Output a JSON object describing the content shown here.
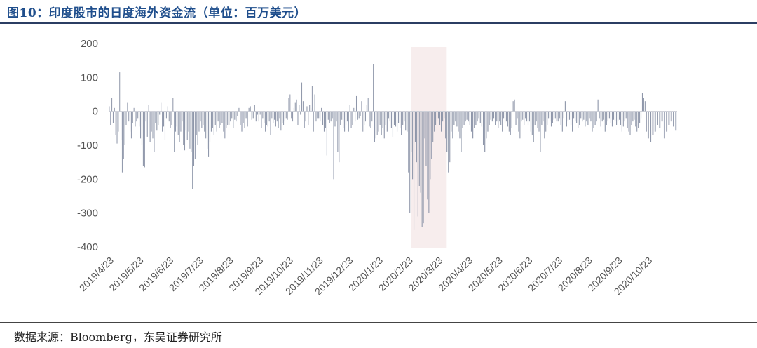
{
  "title": "图10：印度股市的日度海外资金流（单位：百万美元）",
  "source": "数据来源：Bloomberg，东吴证券研究所",
  "colors": {
    "bar": "#8f97aa",
    "highlight": "#f7eded",
    "title": "#1f4e8c"
  },
  "chart_data": {
    "type": "bar",
    "title": "印度股市的日度海外资金流",
    "xlabel": "",
    "ylabel": "",
    "ylim": [
      -400,
      200
    ],
    "yticks": [
      200,
      100,
      0,
      -100,
      -200,
      -300,
      -400
    ],
    "xticks": [
      "2019/4/23",
      "2019/5/23",
      "2019/6/23",
      "2019/7/23",
      "2019/8/23",
      "2019/9/23",
      "2019/10/23",
      "2019/11/23",
      "2019/12/23",
      "2020/1/23",
      "2020/2/23",
      "2020/3/23",
      "2020/4/23",
      "2020/5/23",
      "2020/6/23",
      "2020/7/23",
      "2020/8/23",
      "2020/9/23",
      "2020/10/23"
    ],
    "highlight_range": [
      "2020/2/25",
      "2020/4/1"
    ],
    "monthly_values": [
      [
        15,
        -40,
        40,
        -35,
        10,
        -70,
        -95,
        -60,
        115,
        -85,
        -180,
        -140,
        -100,
        -40,
        25,
        -30,
        -60,
        -80,
        -35,
        10,
        -45,
        -30,
        -20
      ],
      [
        -45,
        -80,
        -100,
        -160,
        -165,
        -30,
        -75,
        20,
        -90,
        -60,
        -80,
        -120,
        -35,
        -55,
        -40,
        -10,
        25,
        -60,
        -45,
        -85,
        -20,
        15
      ],
      [
        -30,
        -50,
        -40,
        40,
        -120,
        -60,
        -45,
        -70,
        -90,
        -60,
        -30,
        -100,
        -115,
        -55,
        -85,
        -60,
        -110,
        -120,
        -230,
        -160,
        -140,
        -70,
        -100
      ],
      [
        -60,
        -30,
        -50,
        -40,
        -60,
        -80,
        -110,
        -135,
        -90,
        -60,
        -50,
        -70,
        -40,
        -60,
        -30,
        -50,
        -40,
        -35,
        -60,
        -80,
        -50,
        -40
      ],
      [
        -40,
        -30,
        -20,
        -50,
        -25,
        -30,
        -15,
        10,
        -40,
        -60,
        -35,
        -50,
        -20,
        -45,
        10,
        15,
        -25,
        -20,
        20,
        -30,
        -10
      ],
      [
        -30,
        -10,
        -50,
        -20,
        -35,
        -60,
        -40,
        -45,
        -30,
        -70,
        -20,
        -35,
        -25,
        -45,
        -30,
        -50,
        -20,
        -55,
        -35,
        -40,
        -30,
        -20,
        -25
      ],
      [
        40,
        50,
        -20,
        -30,
        10,
        25,
        35,
        -40,
        20,
        -10,
        85,
        30,
        -50,
        -30,
        15,
        -40,
        20,
        10,
        75,
        -60,
        50,
        -30,
        -20
      ],
      [
        -20,
        -30,
        10,
        -40,
        -60,
        -50,
        -130,
        -25,
        -35,
        -30,
        -20,
        -200,
        -45,
        -30,
        -120,
        -150,
        -40,
        -25,
        -50,
        -60,
        -40,
        -30
      ],
      [
        -60,
        20,
        -50,
        -40,
        10,
        -30,
        45,
        -25,
        -20,
        -15,
        30,
        -60,
        -40,
        -30,
        20,
        40,
        -45,
        -50,
        -30,
        140,
        -90,
        -80,
        -70
      ],
      [
        -60,
        -40,
        -70,
        -50,
        -80,
        -40,
        -60,
        -20,
        -30,
        -50,
        -75,
        -40,
        -45,
        -60,
        -35,
        -50,
        -70,
        -40,
        -30,
        -55,
        -60
      ],
      [
        -180,
        -300,
        -120,
        -200,
        -350,
        -90,
        -150,
        -310,
        -220,
        -240,
        -340,
        -330,
        -80,
        -160,
        -260,
        -300,
        -200,
        -140,
        -90,
        -60,
        -40,
        -30
      ],
      [
        -20,
        -40,
        -60,
        -30,
        -20,
        -80,
        -120,
        -180,
        -150,
        -60,
        -80,
        -40,
        -30,
        -45,
        -60,
        -80,
        -120,
        -50,
        -40,
        -30,
        -25
      ],
      [
        -30,
        -40,
        -60,
        -80,
        -50,
        -40,
        -30,
        -20,
        -35,
        -45,
        -100,
        -120,
        -80,
        -60,
        -40,
        -25,
        -30,
        -20,
        -40,
        -30
      ],
      [
        -50,
        -30,
        -40,
        -60,
        -20,
        -35,
        -30,
        -45,
        -60,
        -70,
        -50,
        30,
        35,
        -40,
        -20,
        -60,
        -80,
        -30,
        -25,
        -40,
        -20,
        -30
      ],
      [
        -40,
        -30,
        -60,
        -70,
        -90,
        -40,
        -30,
        -50,
        -60,
        -120,
        -40,
        -30,
        -80,
        -60,
        -40,
        -20,
        -30,
        -45,
        -35,
        -25,
        -20,
        -30
      ],
      [
        -30,
        -20,
        -40,
        -60,
        -20,
        30,
        -45,
        -30,
        -25,
        -40,
        -60,
        -20,
        -30,
        -35,
        -50,
        -40,
        -20,
        -30,
        -25,
        -45,
        -30
      ],
      [
        -40,
        -20,
        -30,
        -60,
        -50,
        -40,
        -30,
        35,
        -20,
        -45,
        -30,
        -25,
        -60,
        -40,
        -30,
        -20,
        -35,
        -45,
        -25,
        -30,
        -40
      ],
      [
        -30,
        -25,
        -40,
        -60,
        -45,
        -30,
        -20,
        -50,
        -60,
        -70,
        -40,
        -30,
        -25,
        -45,
        -60,
        -50,
        -35,
        -20,
        55,
        40,
        30,
        -60
      ],
      [
        -80,
        -90,
        -70,
        -60,
        -40,
        -50,
        -30,
        -80,
        -60,
        -40,
        -30,
        -45,
        -55
      ]
    ]
  }
}
